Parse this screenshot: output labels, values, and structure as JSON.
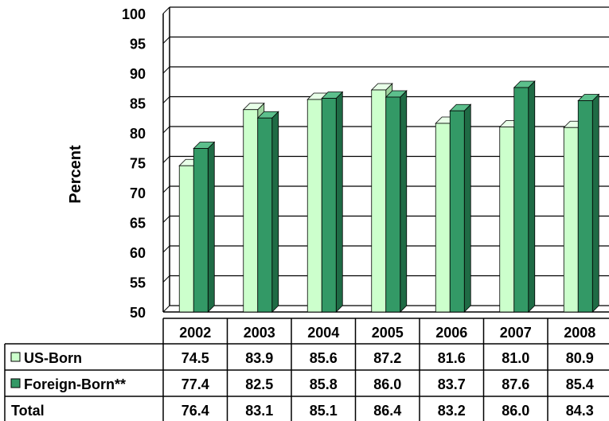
{
  "chart_data": {
    "type": "bar",
    "ylabel": "Percent",
    "ylim": [
      50,
      100
    ],
    "yticks": [
      50,
      55,
      60,
      65,
      70,
      75,
      80,
      85,
      90,
      95,
      100
    ],
    "grid": true,
    "categories": [
      "2002",
      "2003",
      "2004",
      "2005",
      "2006",
      "2007",
      "2008"
    ],
    "series": [
      {
        "name": "US-Born",
        "color": "#ccffcc",
        "values": [
          74.5,
          83.9,
          85.6,
          87.2,
          81.6,
          81.0,
          80.9
        ]
      },
      {
        "name": "Foreign-Born**",
        "color": "#339966",
        "values": [
          77.4,
          82.5,
          85.8,
          86.0,
          83.7,
          87.6,
          85.4
        ]
      }
    ],
    "table_rows": [
      {
        "label": "US-Born",
        "legend": true,
        "values": [
          "74.5",
          "83.9",
          "85.6",
          "87.2",
          "81.6",
          "81.0",
          "80.9"
        ]
      },
      {
        "label": "Foreign-Born**",
        "legend": true,
        "values": [
          "77.4",
          "82.5",
          "85.8",
          "86.0",
          "83.7",
          "87.6",
          "85.4"
        ]
      },
      {
        "label": "Total",
        "legend": false,
        "values": [
          "76.4",
          "83.1",
          "85.1",
          "86.4",
          "83.2",
          "86.0",
          "84.3"
        ]
      }
    ]
  }
}
